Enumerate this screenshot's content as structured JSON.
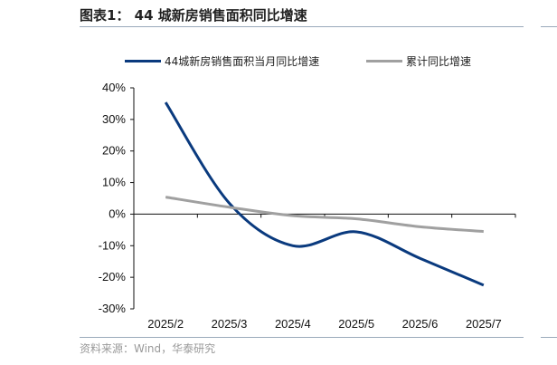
{
  "title": "图表1： 44 城新房销售面积同比增速",
  "source": "资料来源：Wind，华泰研究",
  "chart_data": {
    "type": "line",
    "categories": [
      "2025/2",
      "2025/3",
      "2025/4",
      "2025/5",
      "2025/6",
      "2025/7"
    ],
    "ylim": [
      -30,
      40
    ],
    "yticks": [
      "40%",
      "30%",
      "20%",
      "10%",
      "0%",
      "-10%",
      "-20%",
      "-30%"
    ],
    "legend": "top",
    "grid": false,
    "series": [
      {
        "name": "44城新房销售面积当月同比增速",
        "color": "#0a3a7e",
        "values": [
          35.4,
          3.5,
          -10.0,
          -5.6,
          -14.0,
          -22.5
        ]
      },
      {
        "name": "累计同比增速",
        "color": "#a0a0a0",
        "values": [
          5.4,
          2.2,
          -0.5,
          -1.5,
          -4.0,
          -5.5
        ]
      }
    ]
  }
}
